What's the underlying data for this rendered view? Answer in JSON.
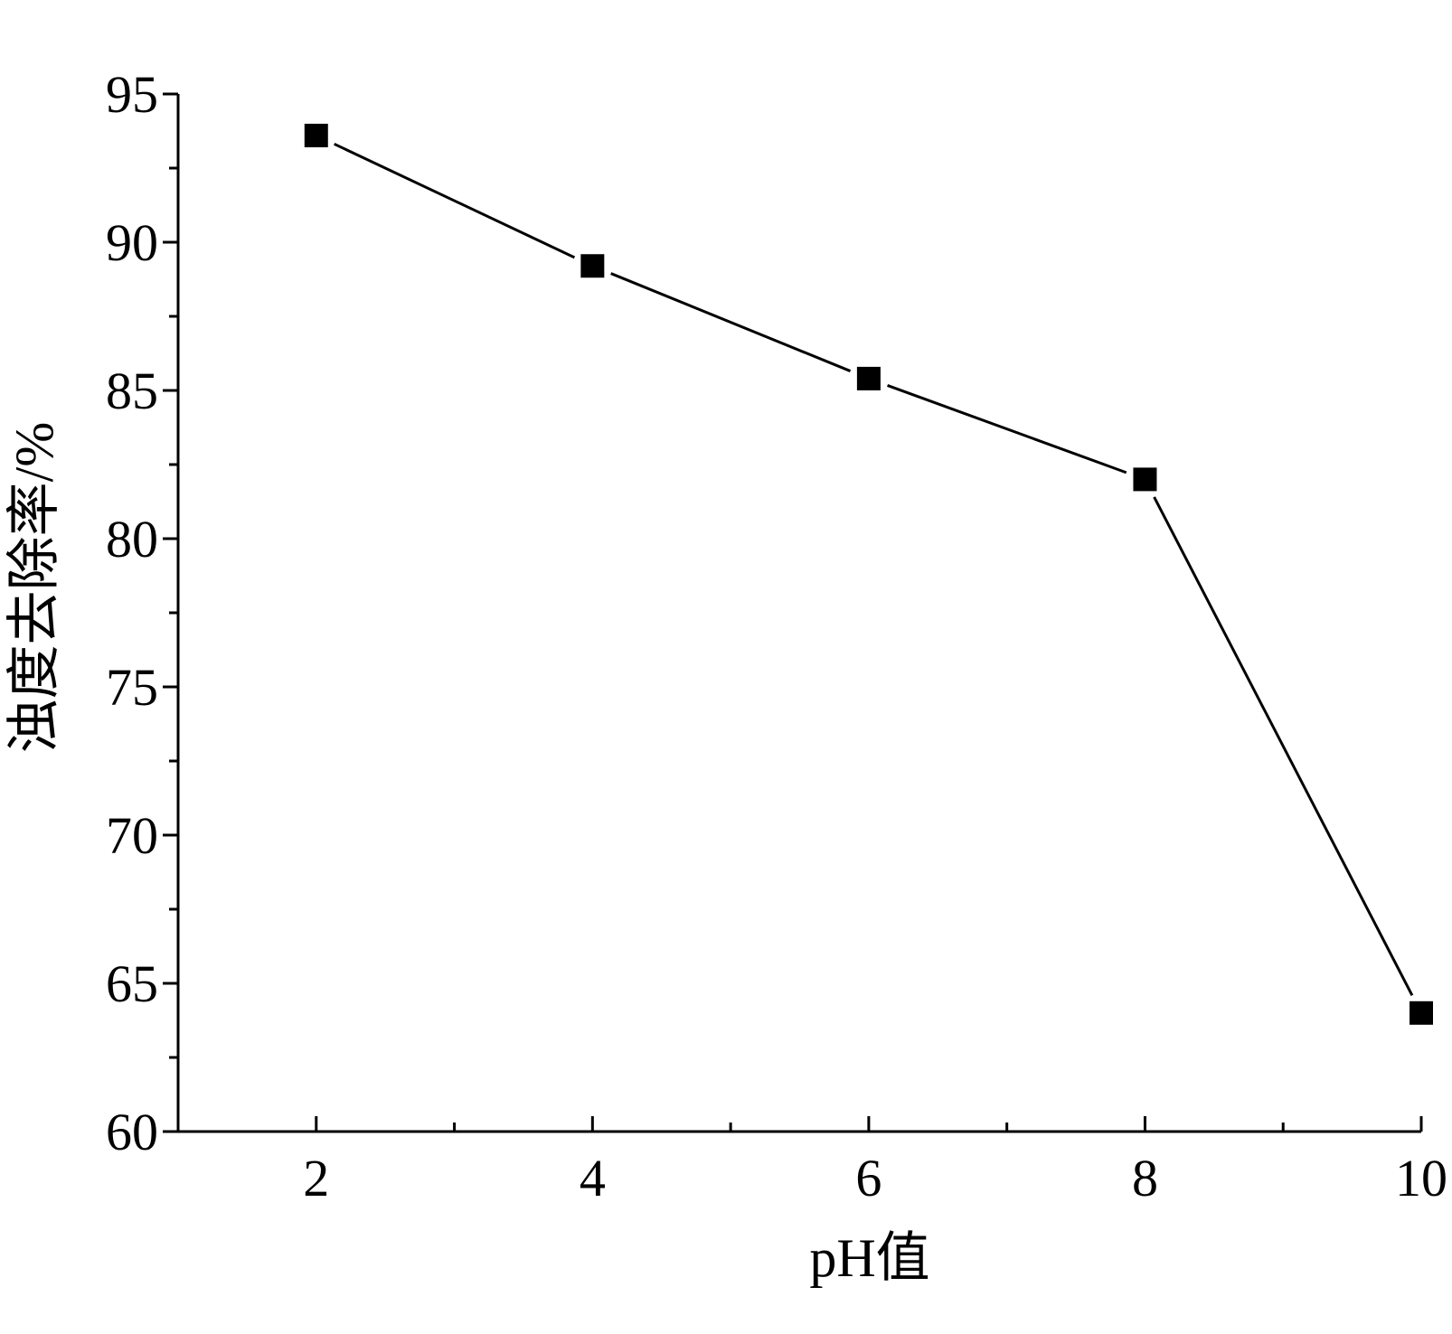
{
  "chart_data": {
    "type": "line",
    "xlabel": "pH值",
    "ylabel": "浊度去除率/%",
    "x": [
      2,
      4,
      6,
      8,
      10
    ],
    "series": [
      {
        "values": [
          93.6,
          89.2,
          85.4,
          82.0,
          64.0
        ]
      }
    ],
    "xlim": [
      1,
      10
    ],
    "ylim": [
      60,
      95
    ],
    "xticks": [
      2,
      4,
      6,
      8,
      10
    ],
    "yticks": [
      60,
      65,
      70,
      75,
      80,
      85,
      90,
      95
    ],
    "x_minor_ticks": [
      3,
      5,
      7,
      9
    ],
    "y_minor_ticks": [
      62.5,
      67.5,
      72.5,
      77.5,
      82.5,
      87.5,
      92.5
    ],
    "grid": false,
    "marker": "square",
    "line_color": "#000000",
    "marker_color": "#000000"
  }
}
